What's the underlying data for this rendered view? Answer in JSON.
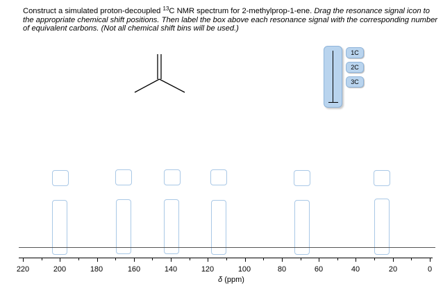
{
  "instructions": {
    "part1": "Construct a simulated proton-decoupled ",
    "superscript": "13",
    "part2": "C NMR spectrum for 2-methylprop-1-ene. ",
    "italic": "Drag the resonance signal icon to the appropriate chemical shift positions. Then label the box above each resonance signal with the corresponding number of equivalent carbons. (Not all chemical shift bins will be used.)"
  },
  "palette": {
    "labels": [
      "1C",
      "2C",
      "3C"
    ],
    "signal_icon": "resonance-signal-icon"
  },
  "spectrum": {
    "axis_ticks": [
      "220",
      "200",
      "180",
      "160",
      "140",
      "120",
      "100",
      "80",
      "60",
      "40",
      "20",
      "0"
    ],
    "axis_title_symbol": "δ",
    "axis_title_unit": "(ppm)",
    "bin_count": 6
  },
  "colors": {
    "chip_fill": "#b9d4ee",
    "bin_border": "#a9c8e6"
  }
}
